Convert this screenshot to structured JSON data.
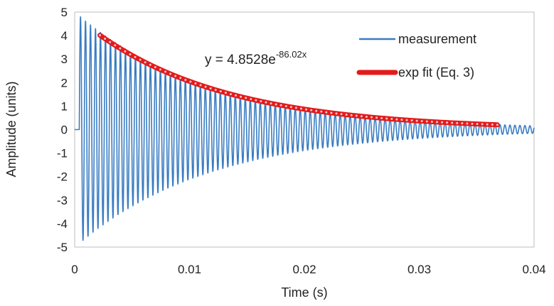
{
  "chart_data": {
    "type": "line",
    "title": "",
    "xlabel": "Time (s)",
    "ylabel": "Amplitude (units)",
    "xlim": [
      0,
      0.04
    ],
    "ylim": [
      -5,
      5
    ],
    "x_ticks": [
      0,
      0.01,
      0.02,
      0.03,
      0.04
    ],
    "x_tick_labels": [
      "0",
      "0.01",
      "0.02",
      "0.03",
      "0.04"
    ],
    "y_ticks": [
      5,
      4,
      3,
      2,
      1,
      0,
      -1,
      -2,
      -3,
      -4,
      -5
    ],
    "y_tick_labels": [
      "5",
      "4",
      "3",
      "2",
      "1",
      "0",
      "-1",
      "-2",
      "-3",
      "-4",
      "-5"
    ],
    "grid": false,
    "legend_position": "top-right",
    "series": [
      {
        "name": "measurement",
        "kind": "damped-sine",
        "color": "#3a7cc2",
        "x_start": 0.0,
        "x_end": 0.04,
        "onset_time": 0.0004,
        "amplitude": 4.85,
        "decay_rate": 86.02,
        "frequency_hz": 2300,
        "residual_amplitude": 0.12,
        "sample_count": 3200
      },
      {
        "name": "exp fit (Eq. 3)",
        "kind": "exponential-fit",
        "color": "#e31b1b",
        "marker_color": "#f4c7c7",
        "x_start": 0.0022,
        "x_end": 0.0368,
        "coefficient": 4.8528,
        "decay_rate": 86.02,
        "marker_count": 80
      }
    ],
    "annotations": [
      {
        "text_main": "y = 4.8528e",
        "text_exponent": "-86.02x",
        "anchor_x": 0.0114,
        "anchor_y": 3.0
      }
    ]
  }
}
